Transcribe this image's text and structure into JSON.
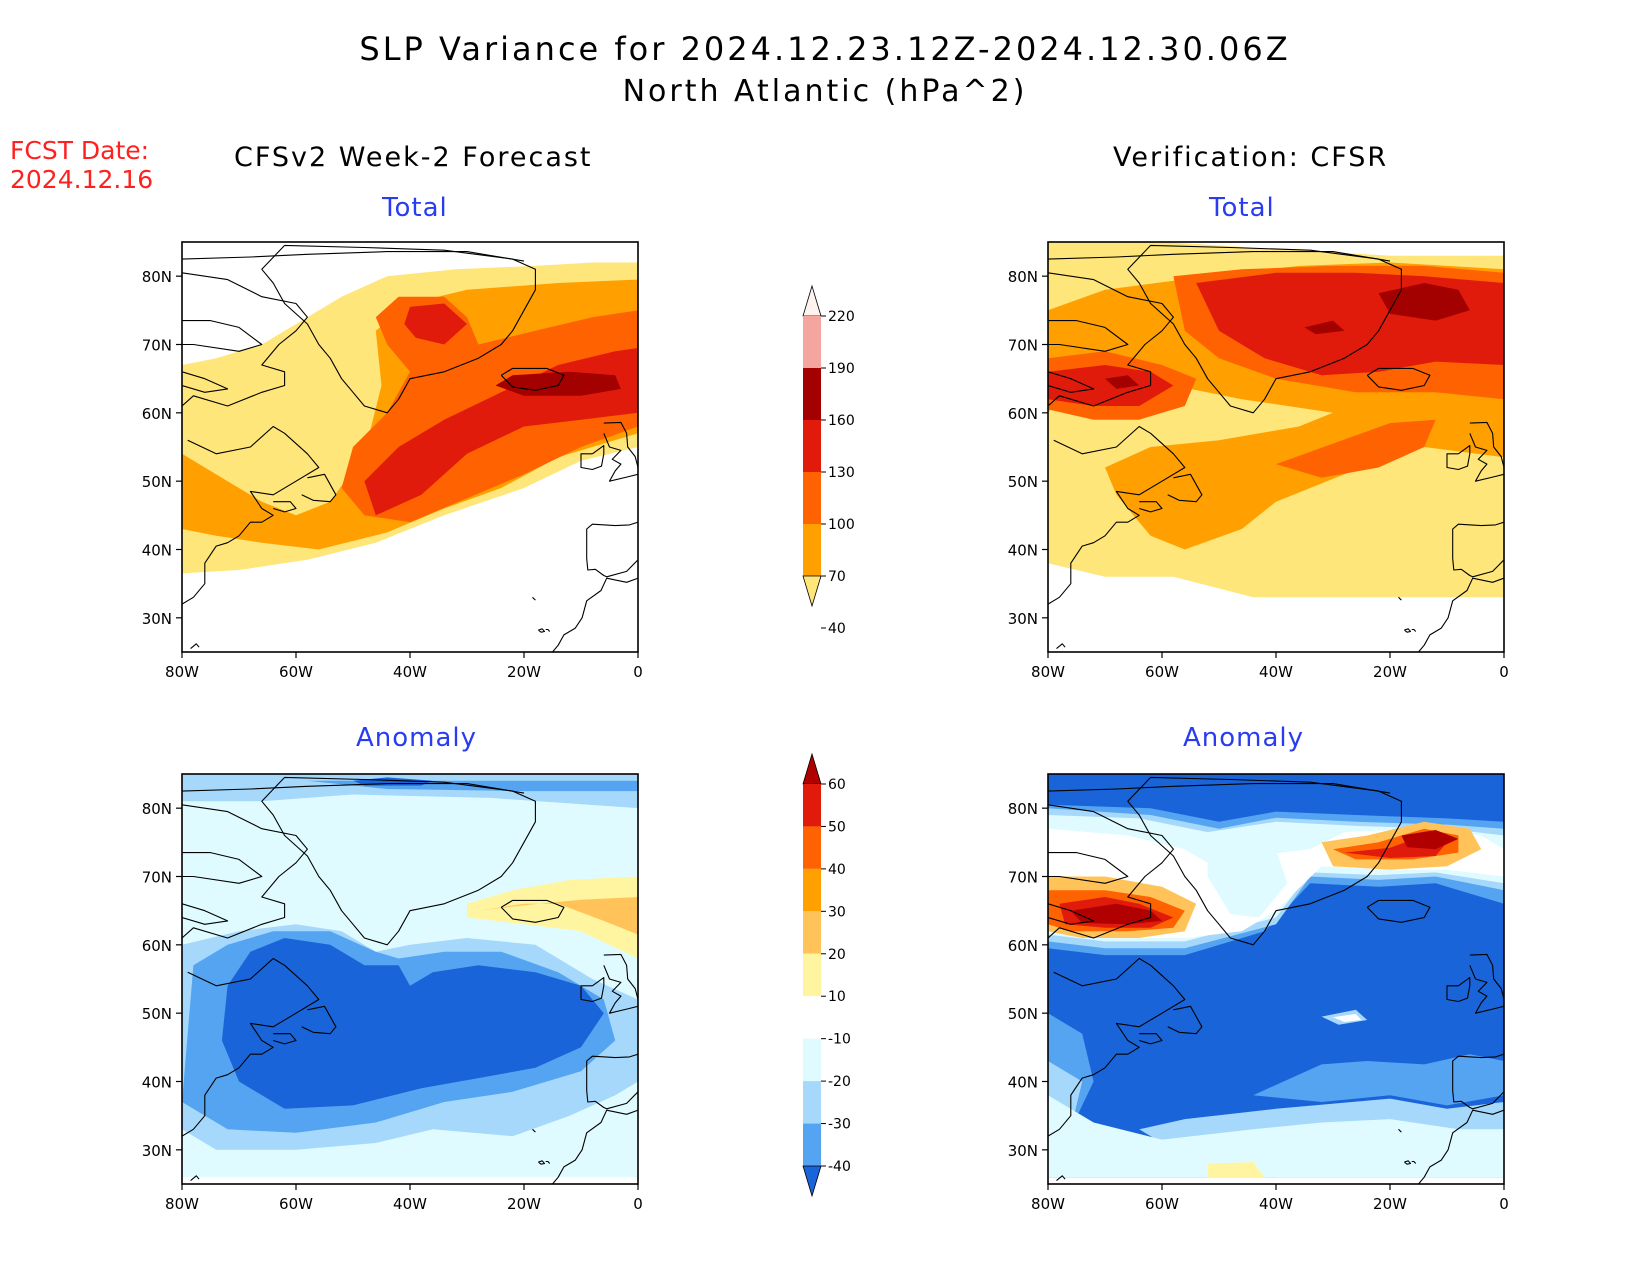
{
  "title": {
    "line1": "SLP Variance for 2024.12.23.12Z-2024.12.30.06Z",
    "line2": "North Atlantic (hPa^2)"
  },
  "fcst_date": {
    "label": "FCST Date:",
    "value": "2024.12.16"
  },
  "columns": {
    "left": "CFSv2 Week-2 Forecast",
    "right": "Verification: CFSR"
  },
  "panel_titles": {
    "total": "Total",
    "anomaly": "Anomaly"
  },
  "axes": {
    "lat_labels": [
      "80N",
      "70N",
      "60N",
      "50N",
      "40N",
      "30N"
    ],
    "lon_labels": [
      "80W",
      "60W",
      "40W",
      "20W",
      "0"
    ],
    "lat_range": [
      25,
      85
    ],
    "lon_range": [
      -80,
      0
    ]
  },
  "colorbar_total": {
    "levels": [
      "220",
      "190",
      "160",
      "130",
      "100",
      "70",
      "40"
    ],
    "colors": [
      "#fff2ef",
      "#f5a5a0",
      "#a30000",
      "#e01b0b",
      "#ff6200",
      "#ffa000",
      "#ffe67a"
    ]
  },
  "colorbar_anomaly": {
    "levels": [
      "60",
      "50",
      "40",
      "30",
      "20",
      "10",
      "-10",
      "-20",
      "-30",
      "-40"
    ],
    "colors": [
      "#b00000",
      "#e01b0b",
      "#ff6200",
      "#ffa000",
      "#ffc35a",
      "#fff5a0",
      "#ffffff",
      "#e0fbff",
      "#a6d8fb",
      "#55a4f2",
      "#1a64d9"
    ]
  },
  "map_colors": {
    "land_outline": "#000000",
    "frame": "#000000",
    "total_bins": [
      "#ffe67a",
      "#ffa000",
      "#ff6200",
      "#e01b0b",
      "#a30000",
      "#f5a5a0"
    ],
    "anom_bins": [
      "#1a64d9",
      "#55a4f2",
      "#a6d8fb",
      "#e0fbff",
      "#ffffff",
      "#fff5a0",
      "#ffc35a",
      "#ffa000",
      "#ff6200",
      "#e01b0b",
      "#b00000"
    ]
  }
}
